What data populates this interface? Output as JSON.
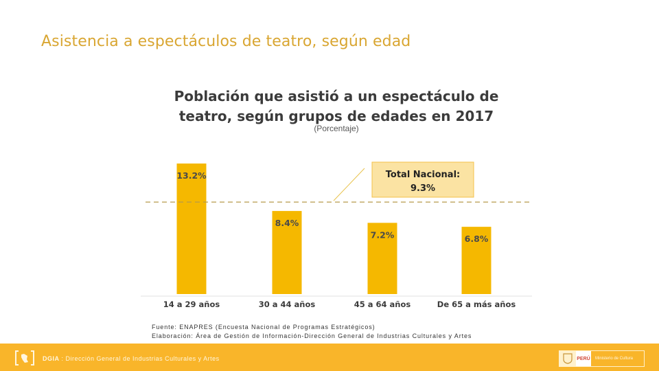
{
  "slide": {
    "title": "Asistencia a espectáculos de teatro, según edad"
  },
  "chart_data": {
    "type": "bar",
    "title_line1": "Población que asistió a un espectáculo de",
    "title_line2": "teatro, según grupos de edades en 2017",
    "subtitle": "(Porcentaje)",
    "categories": [
      "14 a 29 años",
      "30 a 44 años",
      "45 a 64 años",
      "De 65 a más años"
    ],
    "values": [
      13.2,
      8.4,
      7.2,
      6.8
    ],
    "value_labels": [
      "13.2%",
      "8.4%",
      "7.2%",
      "6.8%"
    ],
    "ylim": [
      0,
      15
    ],
    "reference_line": {
      "value": 9.3,
      "label_line1": "Total Nacional:",
      "label_line2": "9.3%"
    },
    "bar_color": "#f5b800",
    "label_color": "#4a4a4a"
  },
  "notes": {
    "source": "Fuente: ENAPRES (Encuesta Nacional de Programas Estratégicos)",
    "elaboration": "Elaboración: Área de Gestión de Información-Dirección General de Industrias Culturales y Artes"
  },
  "footer": {
    "brand": "DGIA",
    "separator": " : ",
    "text": "Dirección General de Industrias Culturales y Artes",
    "country": "PERÚ",
    "ministry": "Ministerio de Cultura",
    "color": "#f9b52a"
  }
}
